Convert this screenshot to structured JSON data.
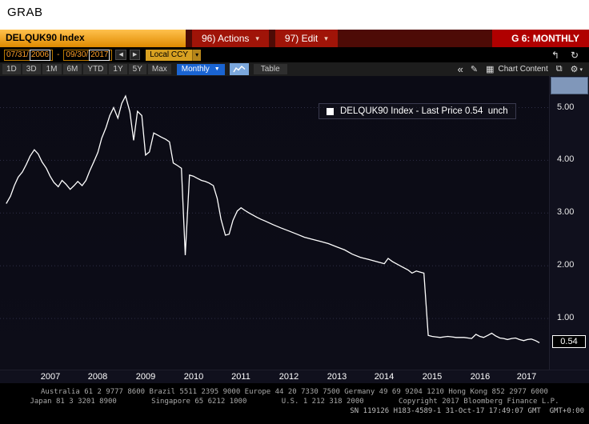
{
  "window": {
    "grab_label": "GRAB"
  },
  "icons": {
    "caret_down": "▾",
    "caret_down_solid": "▼",
    "prev": "◀",
    "next": "▶",
    "jump_back": "↰",
    "refresh": "↻",
    "collapse": "«",
    "annotate": "✎",
    "chart_content": "▦",
    "edit_chart": "⧉",
    "gear": "⚙"
  },
  "header": {
    "security": "DELQUK90 Index",
    "actions_label": "96) Actions",
    "edit_label": "97) Edit",
    "view_label": "G 6: MONTHLY"
  },
  "daterow": {
    "date_from_prefix": "07/31/",
    "date_from_year": "2006",
    "dash": "-",
    "date_to_prefix": "09/30/",
    "date_to_year": "2017",
    "currency_label": "Local CCY"
  },
  "toolbar": {
    "periods": [
      "1D",
      "3D",
      "1M",
      "6M",
      "YTD",
      "1Y",
      "5Y",
      "Max"
    ],
    "frequency_label": "Monthly",
    "table_label": "Table",
    "chart_content_label": "Chart Content"
  },
  "legend": {
    "text": "DELQUK90 Index - Last Price 0.54  unch"
  },
  "axis": {
    "last_price_label": "0.54"
  },
  "footer": {
    "line1": "Australia 61 2 9777 8600 Brazil 5511 2395 9000 Europe 44 20 7330 7500 Germany 49 69 9204 1210 Hong Kong 852 2977 6000",
    "line2": "Japan 81 3 3201 8900        Singapore 65 6212 1000        U.S. 1 212 318 2000        Copyright 2017 Bloomberg Finance L.P.",
    "line3": "SN 119126 H183-4589-1 31-Oct-17 17:49:07 GMT  GMT+0:00"
  },
  "chart_data": {
    "type": "line",
    "title": "DELQUK90 Index - Last Price",
    "xlabel": "",
    "ylabel": "",
    "xlim": [
      2006.45,
      2017.95
    ],
    "ylim": [
      0.03,
      5.6
    ],
    "y_ticks": [
      1,
      2,
      3,
      4,
      5
    ],
    "x_tick_years": [
      2007,
      2008,
      2009,
      2010,
      2011,
      2012,
      2013,
      2014,
      2015,
      2016,
      2017
    ],
    "grid": "horizontal-dotted",
    "legend_position": "top-right",
    "line_color": "#ffffff",
    "background": "#0b0b15",
    "last_price": 0.54,
    "series_name": "DELQUK90 Index - Last Price",
    "points": [
      [
        2006.58,
        3.18
      ],
      [
        2006.67,
        3.32
      ],
      [
        2006.75,
        3.52
      ],
      [
        2006.83,
        3.68
      ],
      [
        2006.92,
        3.78
      ],
      [
        2007.0,
        3.92
      ],
      [
        2007.08,
        4.08
      ],
      [
        2007.17,
        4.2
      ],
      [
        2007.25,
        4.12
      ],
      [
        2007.33,
        3.97
      ],
      [
        2007.42,
        3.85
      ],
      [
        2007.5,
        3.7
      ],
      [
        2007.58,
        3.58
      ],
      [
        2007.67,
        3.5
      ],
      [
        2007.75,
        3.62
      ],
      [
        2007.83,
        3.55
      ],
      [
        2007.92,
        3.45
      ],
      [
        2008.0,
        3.52
      ],
      [
        2008.08,
        3.6
      ],
      [
        2008.17,
        3.52
      ],
      [
        2008.25,
        3.62
      ],
      [
        2008.33,
        3.8
      ],
      [
        2008.42,
        3.98
      ],
      [
        2008.5,
        4.15
      ],
      [
        2008.58,
        4.42
      ],
      [
        2008.67,
        4.62
      ],
      [
        2008.75,
        4.85
      ],
      [
        2008.83,
        5.0
      ],
      [
        2008.92,
        4.8
      ],
      [
        2009.0,
        5.08
      ],
      [
        2009.08,
        5.22
      ],
      [
        2009.17,
        4.92
      ],
      [
        2009.25,
        4.38
      ],
      [
        2009.33,
        4.93
      ],
      [
        2009.42,
        4.85
      ],
      [
        2009.5,
        4.1
      ],
      [
        2009.58,
        4.16
      ],
      [
        2009.67,
        4.52
      ],
      [
        2009.75,
        4.48
      ],
      [
        2009.83,
        4.44
      ],
      [
        2009.92,
        4.4
      ],
      [
        2010.0,
        4.35
      ],
      [
        2010.08,
        3.95
      ],
      [
        2010.17,
        3.9
      ],
      [
        2010.25,
        3.85
      ],
      [
        2010.33,
        2.2
      ],
      [
        2010.42,
        3.72
      ],
      [
        2010.5,
        3.7
      ],
      [
        2010.58,
        3.66
      ],
      [
        2010.67,
        3.62
      ],
      [
        2010.75,
        3.6
      ],
      [
        2010.83,
        3.57
      ],
      [
        2010.92,
        3.52
      ],
      [
        2011.0,
        3.28
      ],
      [
        2011.08,
        2.88
      ],
      [
        2011.17,
        2.58
      ],
      [
        2011.25,
        2.6
      ],
      [
        2011.33,
        2.86
      ],
      [
        2011.42,
        3.04
      ],
      [
        2011.5,
        3.1
      ],
      [
        2011.58,
        3.05
      ],
      [
        2011.67,
        3.0
      ],
      [
        2011.75,
        2.96
      ],
      [
        2011.83,
        2.92
      ],
      [
        2011.92,
        2.88
      ],
      [
        2012.0,
        2.85
      ],
      [
        2012.17,
        2.78
      ],
      [
        2012.33,
        2.72
      ],
      [
        2012.5,
        2.66
      ],
      [
        2012.67,
        2.6
      ],
      [
        2012.83,
        2.54
      ],
      [
        2013.0,
        2.5
      ],
      [
        2013.17,
        2.46
      ],
      [
        2013.33,
        2.42
      ],
      [
        2013.5,
        2.36
      ],
      [
        2013.67,
        2.3
      ],
      [
        2013.83,
        2.22
      ],
      [
        2014.0,
        2.16
      ],
      [
        2014.17,
        2.12
      ],
      [
        2014.33,
        2.08
      ],
      [
        2014.5,
        2.04
      ],
      [
        2014.58,
        2.14
      ],
      [
        2014.67,
        2.08
      ],
      [
        2014.83,
        2.0
      ],
      [
        2015.0,
        1.92
      ],
      [
        2015.08,
        1.86
      ],
      [
        2015.17,
        1.9
      ],
      [
        2015.25,
        1.88
      ],
      [
        2015.33,
        1.86
      ],
      [
        2015.42,
        0.68
      ],
      [
        2015.5,
        0.66
      ],
      [
        2015.58,
        0.65
      ],
      [
        2015.67,
        0.64
      ],
      [
        2015.75,
        0.65
      ],
      [
        2015.83,
        0.66
      ],
      [
        2015.92,
        0.65
      ],
      [
        2016.0,
        0.64
      ],
      [
        2016.17,
        0.64
      ],
      [
        2016.33,
        0.62
      ],
      [
        2016.42,
        0.7
      ],
      [
        2016.5,
        0.66
      ],
      [
        2016.58,
        0.64
      ],
      [
        2016.67,
        0.68
      ],
      [
        2016.75,
        0.72
      ],
      [
        2016.83,
        0.67
      ],
      [
        2016.92,
        0.63
      ],
      [
        2017.0,
        0.62
      ],
      [
        2017.08,
        0.6
      ],
      [
        2017.17,
        0.62
      ],
      [
        2017.25,
        0.63
      ],
      [
        2017.33,
        0.6
      ],
      [
        2017.42,
        0.58
      ],
      [
        2017.5,
        0.6
      ],
      [
        2017.58,
        0.61
      ],
      [
        2017.67,
        0.58
      ],
      [
        2017.75,
        0.54
      ]
    ]
  }
}
